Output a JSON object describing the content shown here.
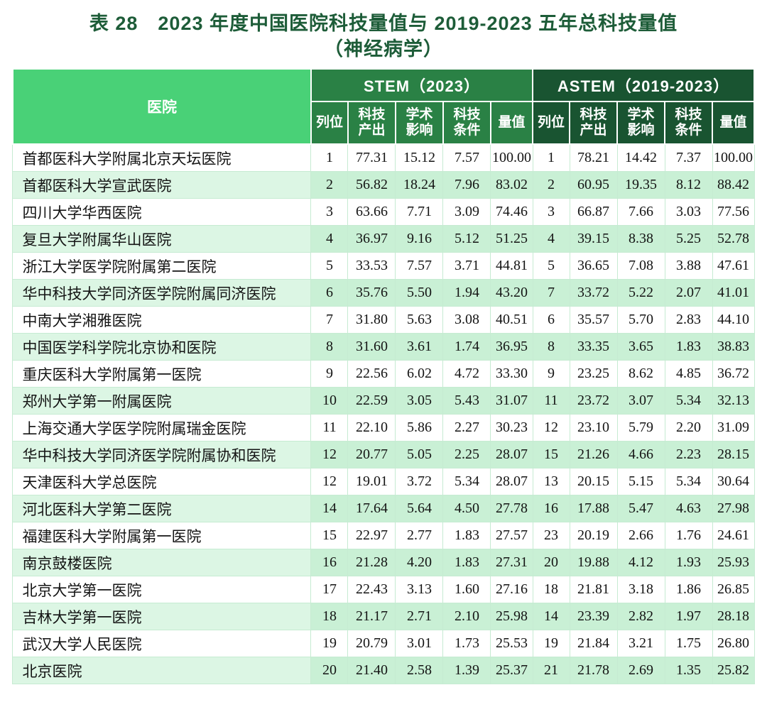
{
  "title": {
    "line1": "表 28　2023 年度中国医院科技量值与 2019-2023 五年总科技量值",
    "line2": "（神经病学）"
  },
  "colors": {
    "title_green": "#1d5c38",
    "hospital_header_green": "#49d177",
    "stem_header_green": "#2a8145",
    "astem_header_green": "#195431",
    "stripe_green": "#c9f0d5",
    "stripe_green_light": "#dcf6e4"
  },
  "table": {
    "hospital_header": "医院",
    "group_headers": [
      {
        "label": "STEM（2023）"
      },
      {
        "label": "ASTEM（2019-2023）"
      }
    ],
    "sub_headers": [
      "列位",
      "科技产出",
      "学术影响",
      "科技条件",
      "量值"
    ],
    "rows": [
      {
        "hospital": "首都医科大学附属北京天坛医院",
        "stem": [
          "1",
          "77.31",
          "15.12",
          "7.57",
          "100.00"
        ],
        "astem": [
          "1",
          "78.21",
          "14.42",
          "7.37",
          "100.00"
        ]
      },
      {
        "hospital": "首都医科大学宣武医院",
        "stem": [
          "2",
          "56.82",
          "18.24",
          "7.96",
          "83.02"
        ],
        "astem": [
          "2",
          "60.95",
          "19.35",
          "8.12",
          "88.42"
        ]
      },
      {
        "hospital": "四川大学华西医院",
        "stem": [
          "3",
          "63.66",
          "7.71",
          "3.09",
          "74.46"
        ],
        "astem": [
          "3",
          "66.87",
          "7.66",
          "3.03",
          "77.56"
        ]
      },
      {
        "hospital": "复旦大学附属华山医院",
        "stem": [
          "4",
          "36.97",
          "9.16",
          "5.12",
          "51.25"
        ],
        "astem": [
          "4",
          "39.15",
          "8.38",
          "5.25",
          "52.78"
        ]
      },
      {
        "hospital": "浙江大学医学院附属第二医院",
        "stem": [
          "5",
          "33.53",
          "7.57",
          "3.71",
          "44.81"
        ],
        "astem": [
          "5",
          "36.65",
          "7.08",
          "3.88",
          "47.61"
        ]
      },
      {
        "hospital": "华中科技大学同济医学院附属同济医院",
        "stem": [
          "6",
          "35.76",
          "5.50",
          "1.94",
          "43.20"
        ],
        "astem": [
          "7",
          "33.72",
          "5.22",
          "2.07",
          "41.01"
        ]
      },
      {
        "hospital": "中南大学湘雅医院",
        "stem": [
          "7",
          "31.80",
          "5.63",
          "3.08",
          "40.51"
        ],
        "astem": [
          "6",
          "35.57",
          "5.70",
          "2.83",
          "44.10"
        ]
      },
      {
        "hospital": "中国医学科学院北京协和医院",
        "stem": [
          "8",
          "31.60",
          "3.61",
          "1.74",
          "36.95"
        ],
        "astem": [
          "8",
          "33.35",
          "3.65",
          "1.83",
          "38.83"
        ]
      },
      {
        "hospital": "重庆医科大学附属第一医院",
        "stem": [
          "9",
          "22.56",
          "6.02",
          "4.72",
          "33.30"
        ],
        "astem": [
          "9",
          "23.25",
          "8.62",
          "4.85",
          "36.72"
        ]
      },
      {
        "hospital": "郑州大学第一附属医院",
        "stem": [
          "10",
          "22.59",
          "3.05",
          "5.43",
          "31.07"
        ],
        "astem": [
          "11",
          "23.72",
          "3.07",
          "5.34",
          "32.13"
        ]
      },
      {
        "hospital": "上海交通大学医学院附属瑞金医院",
        "stem": [
          "11",
          "22.10",
          "5.86",
          "2.27",
          "30.23"
        ],
        "astem": [
          "12",
          "23.10",
          "5.79",
          "2.20",
          "31.09"
        ]
      },
      {
        "hospital": "华中科技大学同济医学院附属协和医院",
        "stem": [
          "12",
          "20.77",
          "5.05",
          "2.25",
          "28.07"
        ],
        "astem": [
          "15",
          "21.26",
          "4.66",
          "2.23",
          "28.15"
        ]
      },
      {
        "hospital": "天津医科大学总医院",
        "stem": [
          "12",
          "19.01",
          "3.72",
          "5.34",
          "28.07"
        ],
        "astem": [
          "13",
          "20.15",
          "5.15",
          "5.34",
          "30.64"
        ]
      },
      {
        "hospital": "河北医科大学第二医院",
        "stem": [
          "14",
          "17.64",
          "5.64",
          "4.50",
          "27.78"
        ],
        "astem": [
          "16",
          "17.88",
          "5.47",
          "4.63",
          "27.98"
        ]
      },
      {
        "hospital": "福建医科大学附属第一医院",
        "stem": [
          "15",
          "22.97",
          "2.77",
          "1.83",
          "27.57"
        ],
        "astem": [
          "23",
          "20.19",
          "2.66",
          "1.76",
          "24.61"
        ]
      },
      {
        "hospital": "南京鼓楼医院",
        "stem": [
          "16",
          "21.28",
          "4.20",
          "1.83",
          "27.31"
        ],
        "astem": [
          "20",
          "19.88",
          "4.12",
          "1.93",
          "25.93"
        ]
      },
      {
        "hospital": "北京大学第一医院",
        "stem": [
          "17",
          "22.43",
          "3.13",
          "1.60",
          "27.16"
        ],
        "astem": [
          "18",
          "21.81",
          "3.18",
          "1.86",
          "26.85"
        ]
      },
      {
        "hospital": "吉林大学第一医院",
        "stem": [
          "18",
          "21.17",
          "2.71",
          "2.10",
          "25.98"
        ],
        "astem": [
          "14",
          "23.39",
          "2.82",
          "1.97",
          "28.18"
        ]
      },
      {
        "hospital": "武汉大学人民医院",
        "stem": [
          "19",
          "20.79",
          "3.01",
          "1.73",
          "25.53"
        ],
        "astem": [
          "19",
          "21.84",
          "3.21",
          "1.75",
          "26.80"
        ]
      },
      {
        "hospital": "北京医院",
        "stem": [
          "20",
          "21.40",
          "2.58",
          "1.39",
          "25.37"
        ],
        "astem": [
          "21",
          "21.78",
          "2.69",
          "1.35",
          "25.82"
        ]
      }
    ]
  }
}
